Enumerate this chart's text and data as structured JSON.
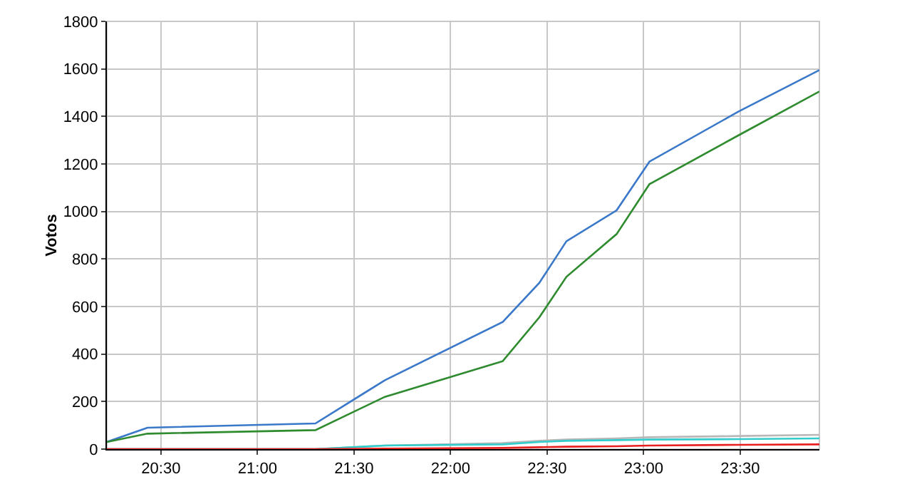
{
  "chart_data": {
    "type": "line",
    "ylabel": "Votos",
    "xlim": [
      20.22,
      23.91
    ],
    "ylim": [
      0,
      1800
    ],
    "xticks": [
      {
        "value": 20.5,
        "label": "20:30"
      },
      {
        "value": 21,
        "label": "21:00"
      },
      {
        "value": 21.5,
        "label": "21:30"
      },
      {
        "value": 22,
        "label": "22:00"
      },
      {
        "value": 22.5,
        "label": "22:30"
      },
      {
        "value": 23,
        "label": "23:00"
      },
      {
        "value": 23.5,
        "label": "23:30"
      }
    ],
    "yticks": [
      0,
      200,
      400,
      600,
      800,
      1000,
      1200,
      1400,
      1600,
      1800
    ],
    "grid": true,
    "marker": "none",
    "line_style": "solid",
    "x": [
      20.22,
      20.43,
      21.3,
      21.66,
      22.27,
      22.46,
      22.6,
      22.86,
      23.03,
      23.49,
      23.91
    ],
    "series": [
      {
        "color": "#3a78c9",
        "values": [
          30,
          90,
          108,
          290,
          535,
          700,
          875,
          1005,
          1210,
          1420,
          1595
        ]
      },
      {
        "color": "#2e8b2e",
        "values": [
          30,
          65,
          80,
          220,
          370,
          555,
          725,
          905,
          1115,
          1320,
          1505
        ]
      },
      {
        "color": "#b8b8b8",
        "values": [
          0,
          0,
          0,
          15,
          25,
          35,
          40,
          45,
          50,
          55,
          60
        ]
      },
      {
        "color": "#33cccc",
        "values": [
          0,
          0,
          0,
          15,
          20,
          30,
          35,
          38,
          40,
          42,
          45
        ]
      },
      {
        "color": "#e82020",
        "values": [
          0,
          0,
          0,
          2,
          5,
          8,
          10,
          12,
          15,
          18,
          20
        ]
      }
    ]
  }
}
